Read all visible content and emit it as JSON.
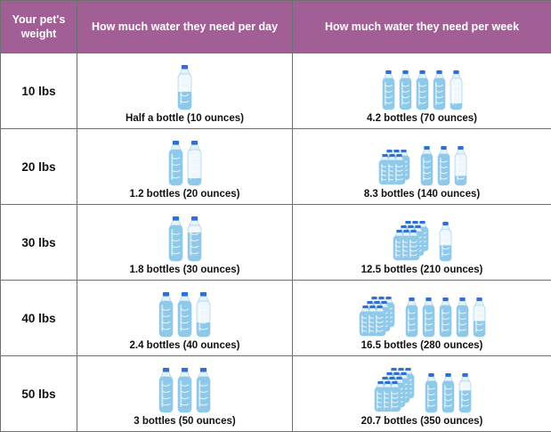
{
  "header": {
    "weight": "Your pet's weight",
    "per_day": "How much water they need per day",
    "per_week": "How much water they need per week"
  },
  "rows": [
    {
      "weight": "10 lbs",
      "day": {
        "caption": "Half a bottle (10 ounces)",
        "bottles": 0.5
      },
      "week": {
        "caption": "4.2 bottles (70 ounces)",
        "bottles": 4.2
      }
    },
    {
      "weight": "20 lbs",
      "day": {
        "caption": "1.2 bottles (20 ounces)",
        "bottles": 1.2
      },
      "week": {
        "caption": "8.3 bottles (140 ounces)",
        "bottles": 8.3
      }
    },
    {
      "weight": "30 lbs",
      "day": {
        "caption": "1.8 bottles (30 ounces)",
        "bottles": 1.8
      },
      "week": {
        "caption": "12.5 bottles (210 ounces)",
        "bottles": 12.5
      }
    },
    {
      "weight": "40 lbs",
      "day": {
        "caption": "2.4 bottles (40 ounces)",
        "bottles": 2.4
      },
      "week": {
        "caption": "16.5 bottles (280 ounces)",
        "bottles": 16.5
      }
    },
    {
      "weight": "50 lbs",
      "day": {
        "caption": "3 bottles (50 ounces)",
        "bottles": 3
      },
      "week": {
        "caption": "20.7 bottles (350 ounces)",
        "bottles": 20.7
      }
    }
  ],
  "icons": {
    "bottle": "water-bottle-icon",
    "bottle_pack": "bottle-pack-icon"
  },
  "colors": {
    "header_bg": "#a15f95",
    "header_text": "#ffffff",
    "water": "#8fc9ea",
    "cap": "#2f6fd6"
  }
}
